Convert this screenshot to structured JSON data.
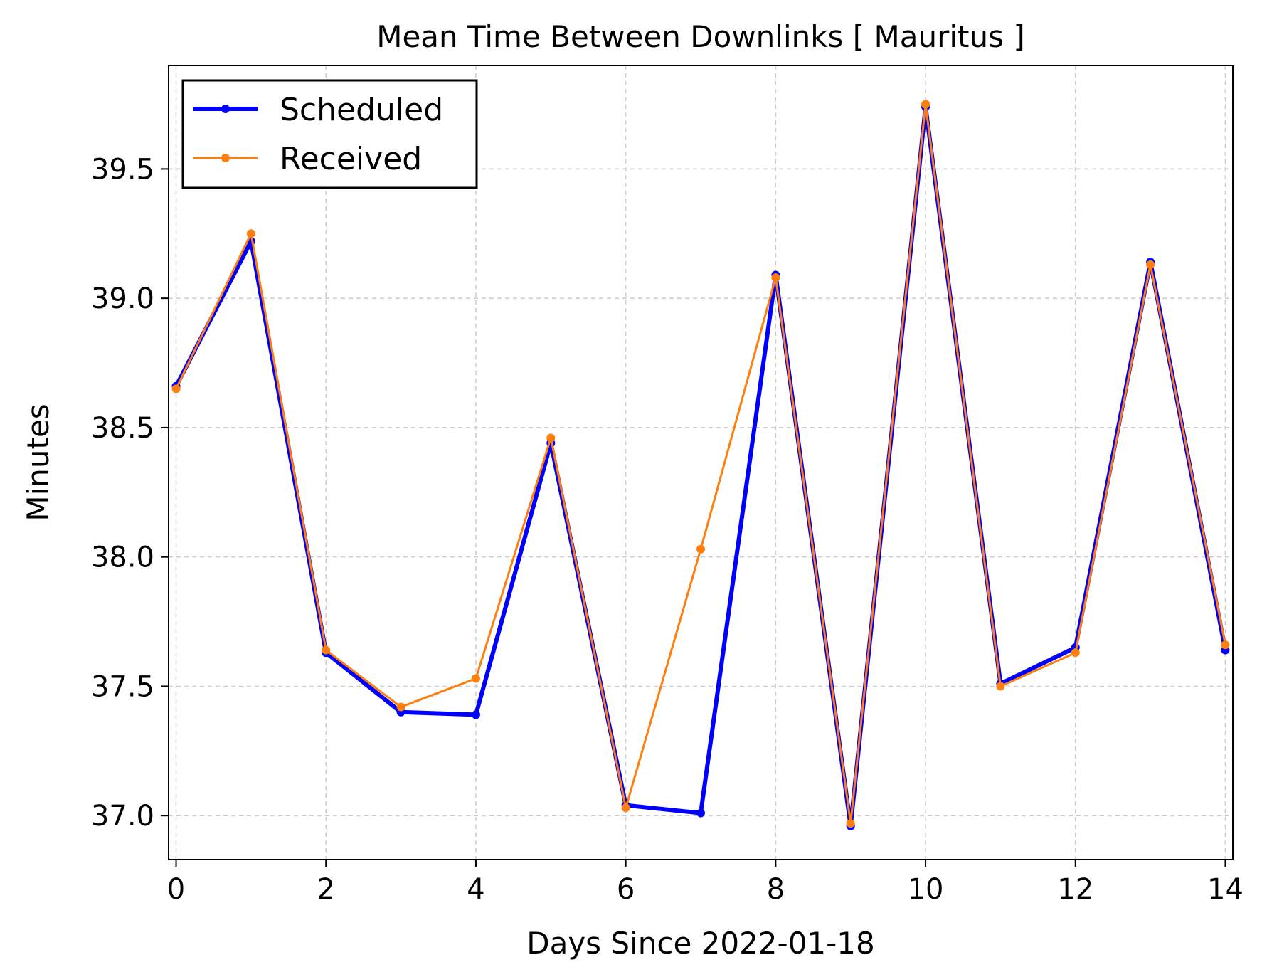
{
  "chart_data": {
    "type": "line",
    "title": "Mean Time Between Downlinks [ Mauritus ]",
    "xlabel": "Days Since 2022-01-18",
    "ylabel": "Minutes",
    "xlim": [
      -0.1,
      14.1
    ],
    "ylim": [
      36.83,
      39.9
    ],
    "xticks": [
      0,
      2,
      4,
      6,
      8,
      10,
      12,
      14
    ],
    "xtick_labels": [
      "0",
      "2",
      "4",
      "6",
      "8",
      "10",
      "12",
      "14"
    ],
    "yticks": [
      37.0,
      37.5,
      38.0,
      38.5,
      39.0,
      39.5
    ],
    "ytick_labels": [
      "37.0",
      "37.5",
      "38.0",
      "38.5",
      "39.0",
      "39.5"
    ],
    "grid": true,
    "legend_position": "top-left",
    "x": [
      0,
      1,
      2,
      3,
      4,
      5,
      6,
      7,
      8,
      9,
      10,
      11,
      12,
      13,
      14
    ],
    "series": [
      {
        "name": "Scheduled",
        "color": "#0000ff",
        "values": [
          38.66,
          39.22,
          37.63,
          37.4,
          37.39,
          38.44,
          37.04,
          37.01,
          39.09,
          36.96,
          39.74,
          37.51,
          37.65,
          39.14,
          37.64
        ]
      },
      {
        "name": "Received",
        "color": "#ff7f0e",
        "values": [
          38.65,
          39.25,
          37.64,
          37.42,
          37.53,
          38.46,
          37.03,
          38.03,
          39.08,
          36.97,
          39.75,
          37.5,
          37.63,
          39.13,
          37.66
        ]
      }
    ]
  }
}
